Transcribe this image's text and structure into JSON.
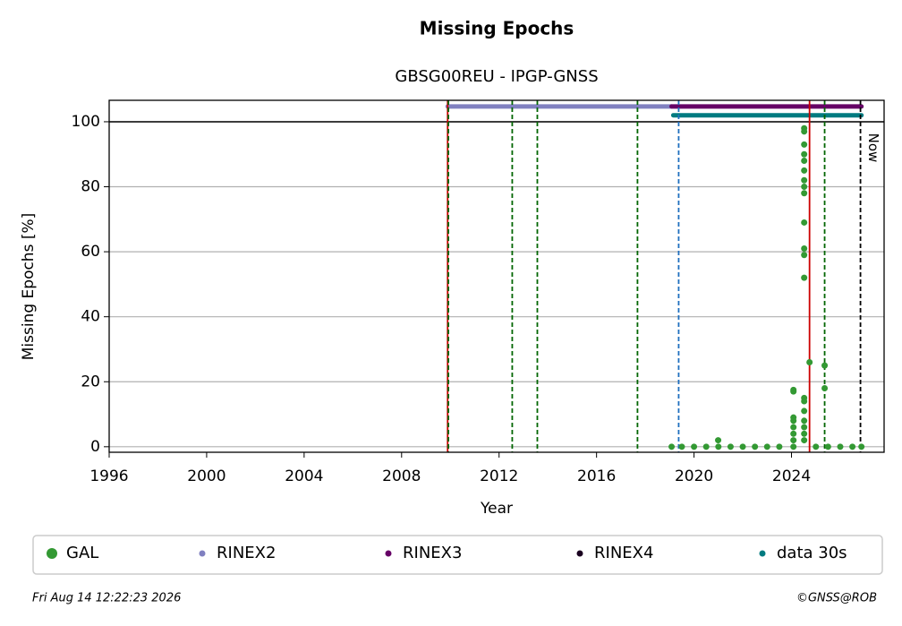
{
  "chart_data": {
    "type": "scatter",
    "title": "Missing Epochs",
    "subtitle": "GBSG00REU - IPGP-GNSS",
    "x_label": "Year",
    "y_label": "Missing Epochs [%]",
    "xlim": [
      1996,
      2027.8
    ],
    "ylim": [
      -1.7,
      106.6
    ],
    "xticks": [
      1996,
      2000,
      2004,
      2008,
      2012,
      2016,
      2020,
      2024
    ],
    "yticks": [
      0,
      20,
      40,
      60,
      80,
      100
    ],
    "grid": true,
    "legend": "bottom",
    "series": [
      {
        "name": "GAL",
        "color": "#339933",
        "style": "markers",
        "x": [
          2019.08,
          2019.5,
          2020.0,
          2020.5,
          2020.99,
          2021.0,
          2021.5,
          2022.0,
          2022.5,
          2023.0,
          2023.5,
          2024.08,
          2024.08,
          2024.08,
          2024.08,
          2024.08,
          2024.08,
          2024.08,
          2024.08,
          2024.52,
          2024.52,
          2024.52,
          2024.52,
          2024.52,
          2024.52,
          2024.52,
          2024.52,
          2024.52,
          2024.52,
          2024.52,
          2024.52,
          2024.52,
          2024.52,
          2024.52,
          2024.52,
          2024.52,
          2024.52,
          2024.52,
          2024.52,
          2024.74,
          2025.0,
          2025.36,
          2025.36,
          2025.5,
          2026.0,
          2026.5,
          2026.87
        ],
        "values": [
          0,
          0,
          0,
          0,
          2,
          0,
          0,
          0,
          0,
          0,
          0,
          9,
          8,
          6,
          4,
          2,
          0,
          17.5,
          17,
          98,
          97,
          93,
          90,
          88,
          85,
          82,
          80,
          78,
          69,
          61,
          59,
          52,
          15,
          14,
          11,
          8,
          6,
          4,
          2,
          26,
          0,
          25,
          18,
          0,
          0,
          0,
          0
        ]
      },
      {
        "name": "RINEX2",
        "color": "#8080c0",
        "style": "line",
        "x": [
          2009.89,
          2019.08
        ],
        "values": [
          104.7,
          104.7
        ]
      },
      {
        "name": "RINEX3",
        "color": "#660066",
        "style": "line",
        "x": [
          2019.08,
          2026.87
        ],
        "values": [
          104.7,
          104.7
        ]
      },
      {
        "name": "RINEX4",
        "color": "#1a0020",
        "style": "line",
        "x": [],
        "values": []
      },
      {
        "name": "data 30s",
        "color": "#007b80",
        "style": "line",
        "x": [
          2019.15,
          2026.87
        ],
        "values": [
          102,
          102
        ]
      }
    ],
    "vlines": [
      {
        "x": 2009.89,
        "color": "#cc0000",
        "style": "solid"
      },
      {
        "x": 2009.92,
        "color": "#006600",
        "style": "dashed"
      },
      {
        "x": 2012.54,
        "color": "#006600",
        "style": "dashed"
      },
      {
        "x": 2013.57,
        "color": "#006600",
        "style": "dashed"
      },
      {
        "x": 2017.68,
        "color": "#006600",
        "style": "dashed"
      },
      {
        "x": 2019.37,
        "color": "#1f6fbf",
        "style": "dashed"
      },
      {
        "x": 2024.74,
        "color": "#cc0000",
        "style": "solid"
      },
      {
        "x": 2025.36,
        "color": "#006600",
        "style": "dashed"
      },
      {
        "x": 2026.83,
        "color": "#000000",
        "style": "dashed"
      }
    ],
    "hlines": [
      {
        "y": 100,
        "color": "#000000"
      }
    ],
    "annotations": [
      {
        "text": "Now"
      }
    ],
    "footer_left": "Fri Aug 14 12:22:23 2026",
    "footer_right": "©GNSS@ROB"
  }
}
